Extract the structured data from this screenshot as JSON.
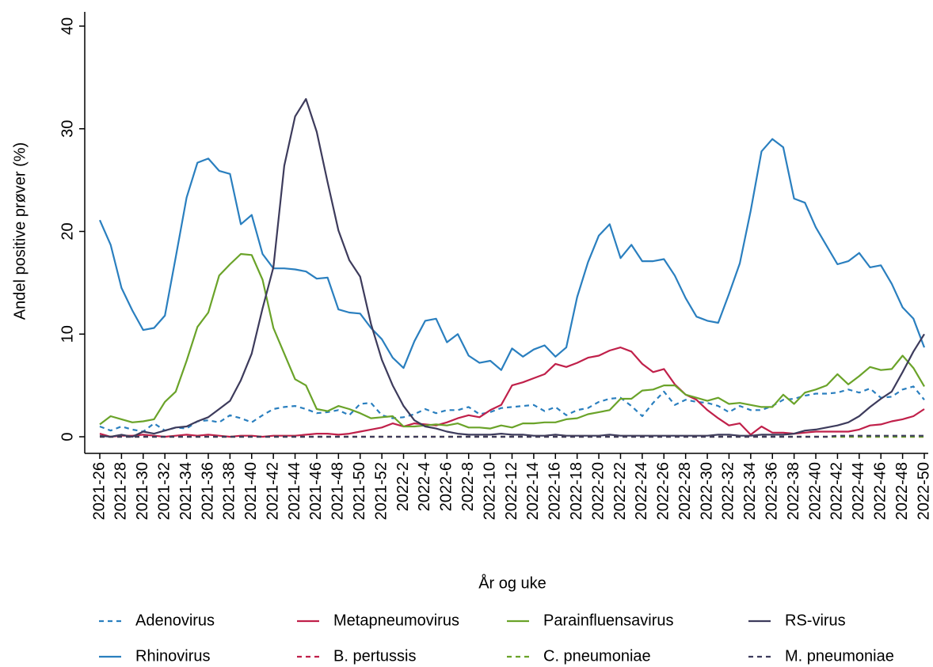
{
  "chart_data": {
    "type": "line",
    "y_label": "Andel positive prøver (%)",
    "x_label": "År og uke",
    "categories": [
      "2021-26",
      null,
      "2021-28",
      null,
      "2021-30",
      null,
      "2021-32",
      null,
      "2021-34",
      null,
      "2021-36",
      null,
      "2021-38",
      null,
      "2021-40",
      null,
      "2021-42",
      null,
      "2021-44",
      null,
      "2021-46",
      null,
      "2021-48",
      null,
      "2021-50",
      null,
      "2021-52",
      null,
      "2022-2",
      null,
      "2022-4",
      null,
      "2022-6",
      null,
      "2022-8",
      null,
      "2022-10",
      null,
      "2022-12",
      null,
      "2022-14",
      null,
      "2022-16",
      null,
      "2022-18",
      null,
      "2022-20",
      null,
      "2022-22",
      null,
      "2022-24",
      null,
      "2022-26",
      null,
      "2022-28",
      null,
      "2022-30",
      null,
      "2022-32",
      null,
      "2022-34",
      null,
      "2022-36",
      null,
      "2022-38",
      null,
      "2022-40",
      null,
      "2022-42",
      null,
      "2022-44",
      null,
      "2022-46",
      null,
      "2022-48",
      null,
      "2022-50"
    ],
    "ylim": [
      0,
      40
    ],
    "yticks": [
      0,
      10,
      20,
      30,
      40
    ],
    "grid": false,
    "series": [
      {
        "name": "Adenovirus",
        "color": "#2a7fbf",
        "style": "dashed",
        "values": [
          1.0,
          0.6,
          1.0,
          0.7,
          0.5,
          1.3,
          0.6,
          0.9,
          0.8,
          1.5,
          1.6,
          1.4,
          2.1,
          1.8,
          1.4,
          2.1,
          2.7,
          2.9,
          3.0,
          2.7,
          2.3,
          2.4,
          2.6,
          2.1,
          3.2,
          3.3,
          2.1,
          1.8,
          1.9,
          2.2,
          2.7,
          2.3,
          2.6,
          2.6,
          2.9,
          2.2,
          2.4,
          2.8,
          2.9,
          3.0,
          3.1,
          2.5,
          2.9,
          2.1,
          2.6,
          2.8,
          3.4,
          3.7,
          3.8,
          3.0,
          2.0,
          3.3,
          4.4,
          3.1,
          3.6,
          3.4,
          3.3,
          3.0,
          2.4,
          3.0,
          2.6,
          2.6,
          3.0,
          3.6,
          3.7,
          4.0,
          4.2,
          4.2,
          4.3,
          4.6,
          4.3,
          4.7,
          3.8,
          3.9,
          4.6,
          4.9,
          3.6
        ]
      },
      {
        "name": "Metapneumovirus",
        "color": "#c0204a",
        "style": "solid",
        "values": [
          0.3,
          0.0,
          0.1,
          0.1,
          0.2,
          0.1,
          0.0,
          0.1,
          0.2,
          0.1,
          0.2,
          0.1,
          0.0,
          0.1,
          0.1,
          0.0,
          0.1,
          0.1,
          0.1,
          0.2,
          0.3,
          0.3,
          0.2,
          0.3,
          0.5,
          0.7,
          0.9,
          1.3,
          1.0,
          1.3,
          1.2,
          1.1,
          1.4,
          1.8,
          2.1,
          1.9,
          2.6,
          3.1,
          5.0,
          5.3,
          5.7,
          6.1,
          7.1,
          6.8,
          7.2,
          7.7,
          7.9,
          8.4,
          8.7,
          8.3,
          7.1,
          6.3,
          6.6,
          5.1,
          4.1,
          3.6,
          2.6,
          1.8,
          1.1,
          1.3,
          0.2,
          1.0,
          0.4,
          0.4,
          0.3,
          0.4,
          0.5,
          0.5,
          0.5,
          0.5,
          0.7,
          1.1,
          1.2,
          1.5,
          1.7,
          2.0,
          2.7
        ]
      },
      {
        "name": "Parainfluensavirus",
        "color": "#6aa329",
        "style": "solid",
        "values": [
          1.2,
          2.0,
          1.7,
          1.4,
          1.5,
          1.7,
          3.4,
          4.4,
          7.4,
          10.7,
          12.1,
          15.7,
          16.8,
          17.8,
          17.7,
          15.3,
          10.6,
          8.1,
          5.6,
          5.0,
          2.7,
          2.5,
          3.0,
          2.7,
          2.3,
          1.8,
          1.9,
          2.0,
          1.0,
          1.0,
          1.1,
          1.2,
          1.1,
          1.3,
          0.9,
          0.9,
          0.8,
          1.1,
          0.9,
          1.3,
          1.3,
          1.4,
          1.4,
          1.7,
          1.8,
          2.2,
          2.4,
          2.6,
          3.7,
          3.7,
          4.5,
          4.6,
          5.0,
          5.0,
          4.1,
          3.8,
          3.5,
          3.8,
          3.2,
          3.3,
          3.1,
          2.9,
          2.9,
          4.1,
          3.2,
          4.3,
          4.6,
          5.0,
          6.1,
          5.1,
          5.9,
          6.8,
          6.5,
          6.6,
          7.9,
          6.7,
          4.9
        ]
      },
      {
        "name": "RS-virus",
        "color": "#3d3b5c",
        "style": "solid",
        "values": [
          0.1,
          0.0,
          0.2,
          0.0,
          0.5,
          0.3,
          0.6,
          0.9,
          1.0,
          1.5,
          1.9,
          2.7,
          3.5,
          5.5,
          8.1,
          12.5,
          16.5,
          26.4,
          31.2,
          32.9,
          29.7,
          24.8,
          20.1,
          17.2,
          15.6,
          11.0,
          7.5,
          5.0,
          3.0,
          1.6,
          1.0,
          0.8,
          0.5,
          0.3,
          0.2,
          0.2,
          0.2,
          0.3,
          0.2,
          0.2,
          0.1,
          0.1,
          0.2,
          0.1,
          0.1,
          0.1,
          0.1,
          0.2,
          0.1,
          0.1,
          0.1,
          0.1,
          0.1,
          0.1,
          0.1,
          0.1,
          0.1,
          0.2,
          0.2,
          0.1,
          0.1,
          0.2,
          0.2,
          0.2,
          0.3,
          0.6,
          0.7,
          0.9,
          1.1,
          1.4,
          2.0,
          2.9,
          3.7,
          4.4,
          6.3,
          8.3,
          10.0
        ]
      },
      {
        "name": "Rhinovirus",
        "color": "#2a7fbf",
        "style": "solid",
        "values": [
          21.1,
          18.7,
          14.5,
          12.3,
          10.4,
          10.6,
          11.8,
          17.5,
          23.3,
          26.7,
          27.1,
          25.9,
          25.6,
          20.7,
          21.6,
          17.8,
          16.4,
          16.4,
          16.3,
          16.1,
          15.4,
          15.5,
          12.4,
          12.1,
          12.0,
          10.6,
          9.5,
          7.7,
          6.7,
          9.3,
          11.3,
          11.5,
          9.2,
          10.0,
          7.9,
          7.2,
          7.4,
          6.5,
          8.6,
          7.8,
          8.5,
          8.9,
          7.8,
          8.7,
          13.6,
          17.0,
          19.6,
          20.7,
          17.4,
          18.7,
          17.1,
          17.1,
          17.3,
          15.7,
          13.5,
          11.7,
          11.3,
          11.1,
          13.9,
          16.9,
          22.0,
          27.8,
          29.0,
          28.2,
          23.2,
          22.8,
          20.4,
          18.6,
          16.8,
          17.1,
          17.9,
          16.5,
          16.7,
          14.9,
          12.6,
          11.5,
          8.7
        ]
      },
      {
        "name": "B. pertussis",
        "color": "#c0204a",
        "style": "dashed",
        "values": [
          0,
          0,
          0,
          0,
          0,
          0,
          0,
          0,
          0,
          0,
          0,
          0,
          0,
          0,
          0,
          0,
          0,
          0,
          0,
          0,
          0,
          0,
          0,
          0,
          0,
          0,
          0,
          0,
          0,
          0,
          0,
          0,
          0,
          0,
          0,
          0,
          0,
          0,
          0,
          0,
          0,
          0,
          0,
          0,
          0,
          0,
          0,
          0,
          0,
          0,
          0,
          0,
          0,
          0,
          0,
          0,
          0,
          0,
          0,
          0,
          0,
          0,
          0,
          0,
          0,
          0,
          0,
          0,
          0,
          0,
          0,
          0,
          0,
          0,
          0,
          0,
          0
        ]
      },
      {
        "name": "C. pneumoniae",
        "color": "#6aa329",
        "style": "dashed",
        "values": [
          0,
          0,
          0,
          0,
          0,
          0,
          0,
          0,
          0,
          0,
          0,
          0,
          0,
          0,
          0,
          0,
          0,
          0,
          0,
          0,
          0,
          0,
          0,
          0,
          0,
          0,
          0,
          0,
          0,
          0,
          0,
          0,
          0,
          0,
          0,
          0,
          0,
          0,
          0,
          0,
          0,
          0,
          0,
          0,
          0,
          0,
          0,
          0,
          0,
          0,
          0,
          0,
          0,
          0,
          0,
          0,
          0,
          0,
          0,
          0,
          0,
          0,
          0,
          0,
          0,
          0,
          0,
          0,
          0,
          0,
          0,
          0,
          0,
          0,
          0,
          0,
          0
        ]
      },
      {
        "name": "M. pneumoniae",
        "color": "#3d3b5c",
        "style": "dashed",
        "values": [
          0,
          0,
          0,
          0,
          0,
          0,
          0,
          0,
          0,
          0,
          0,
          0,
          0,
          0,
          0,
          0,
          0,
          0,
          0,
          0,
          0,
          0,
          0,
          0,
          0,
          0,
          0,
          0,
          0,
          0,
          0,
          0,
          0,
          0,
          0,
          0,
          0,
          0,
          0,
          0,
          0,
          0,
          0,
          0,
          0,
          0,
          0,
          0,
          0,
          0,
          0,
          0,
          0,
          0,
          0,
          0,
          0,
          0,
          0,
          0,
          0,
          0,
          0,
          0,
          0,
          0,
          0,
          0,
          0.1,
          0.1,
          0.1,
          0.1,
          0.1,
          0.1,
          0.1,
          0.1,
          0.1
        ]
      }
    ]
  }
}
